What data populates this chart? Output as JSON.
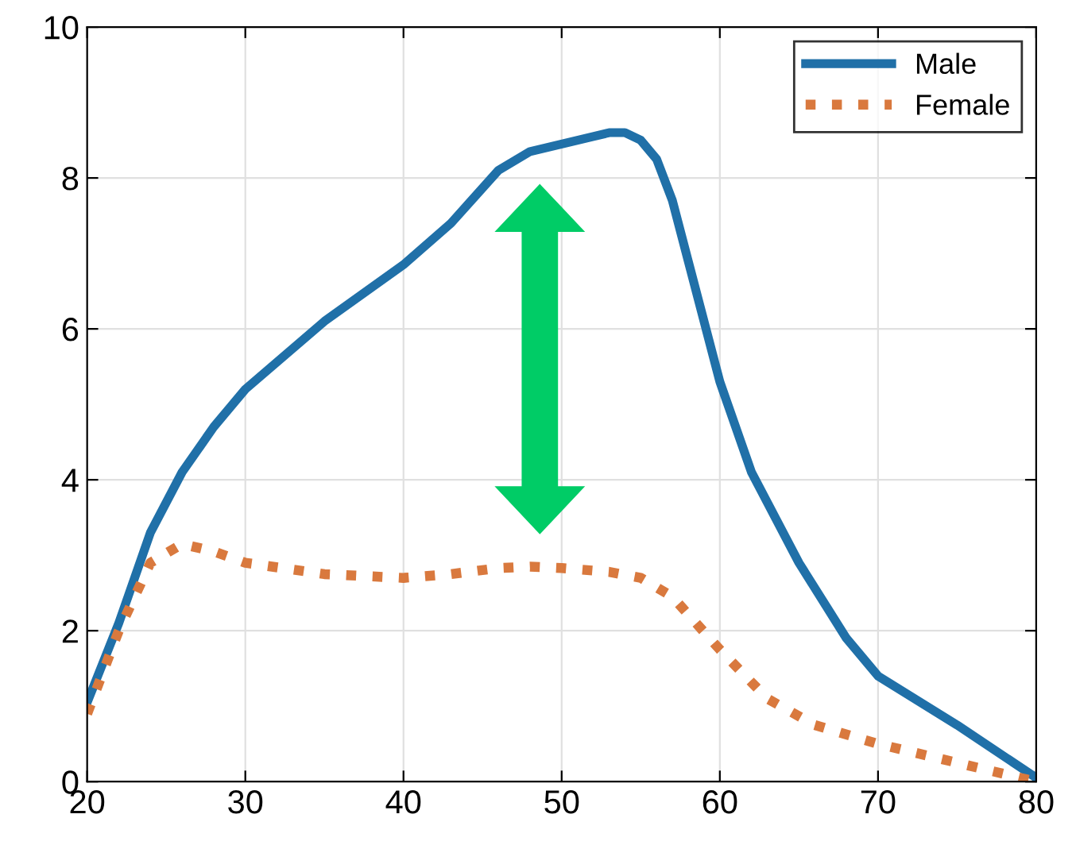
{
  "chart_data": {
    "type": "line",
    "xlim": [
      20,
      80
    ],
    "ylim": [
      0,
      10
    ],
    "xticks": [
      20,
      30,
      40,
      50,
      60,
      70,
      80
    ],
    "yticks": [
      0,
      2,
      4,
      6,
      8,
      10
    ],
    "grid": true,
    "legend": "top right",
    "series": [
      {
        "name": "Male",
        "color": "#2070a8",
        "line_style": "solid",
        "x": [
          20,
          22,
          24,
          26,
          28,
          30,
          35,
          40,
          43,
          46,
          48,
          50,
          52,
          53,
          54,
          55,
          56,
          57,
          58,
          60,
          62,
          65,
          68,
          70,
          75,
          80
        ],
        "values": [
          1.05,
          2.1,
          3.3,
          4.1,
          4.7,
          5.2,
          6.1,
          6.85,
          7.4,
          8.1,
          8.35,
          8.45,
          8.55,
          8.6,
          8.6,
          8.5,
          8.25,
          7.7,
          6.9,
          5.3,
          4.1,
          2.9,
          1.9,
          1.4,
          0.75,
          0.05
        ]
      },
      {
        "name": "Female",
        "color": "#d9793e",
        "line_style": "dotted",
        "x": [
          20,
          22,
          24,
          26,
          28,
          30,
          35,
          40,
          43,
          46,
          48,
          50,
          53,
          55,
          57,
          60,
          63,
          66,
          70,
          75,
          80
        ],
        "values": [
          0.9,
          2.0,
          2.9,
          3.15,
          3.05,
          2.9,
          2.75,
          2.7,
          2.75,
          2.83,
          2.85,
          2.83,
          2.78,
          2.7,
          2.45,
          1.75,
          1.1,
          0.75,
          0.5,
          0.25,
          0.0
        ]
      }
    ]
  }
}
